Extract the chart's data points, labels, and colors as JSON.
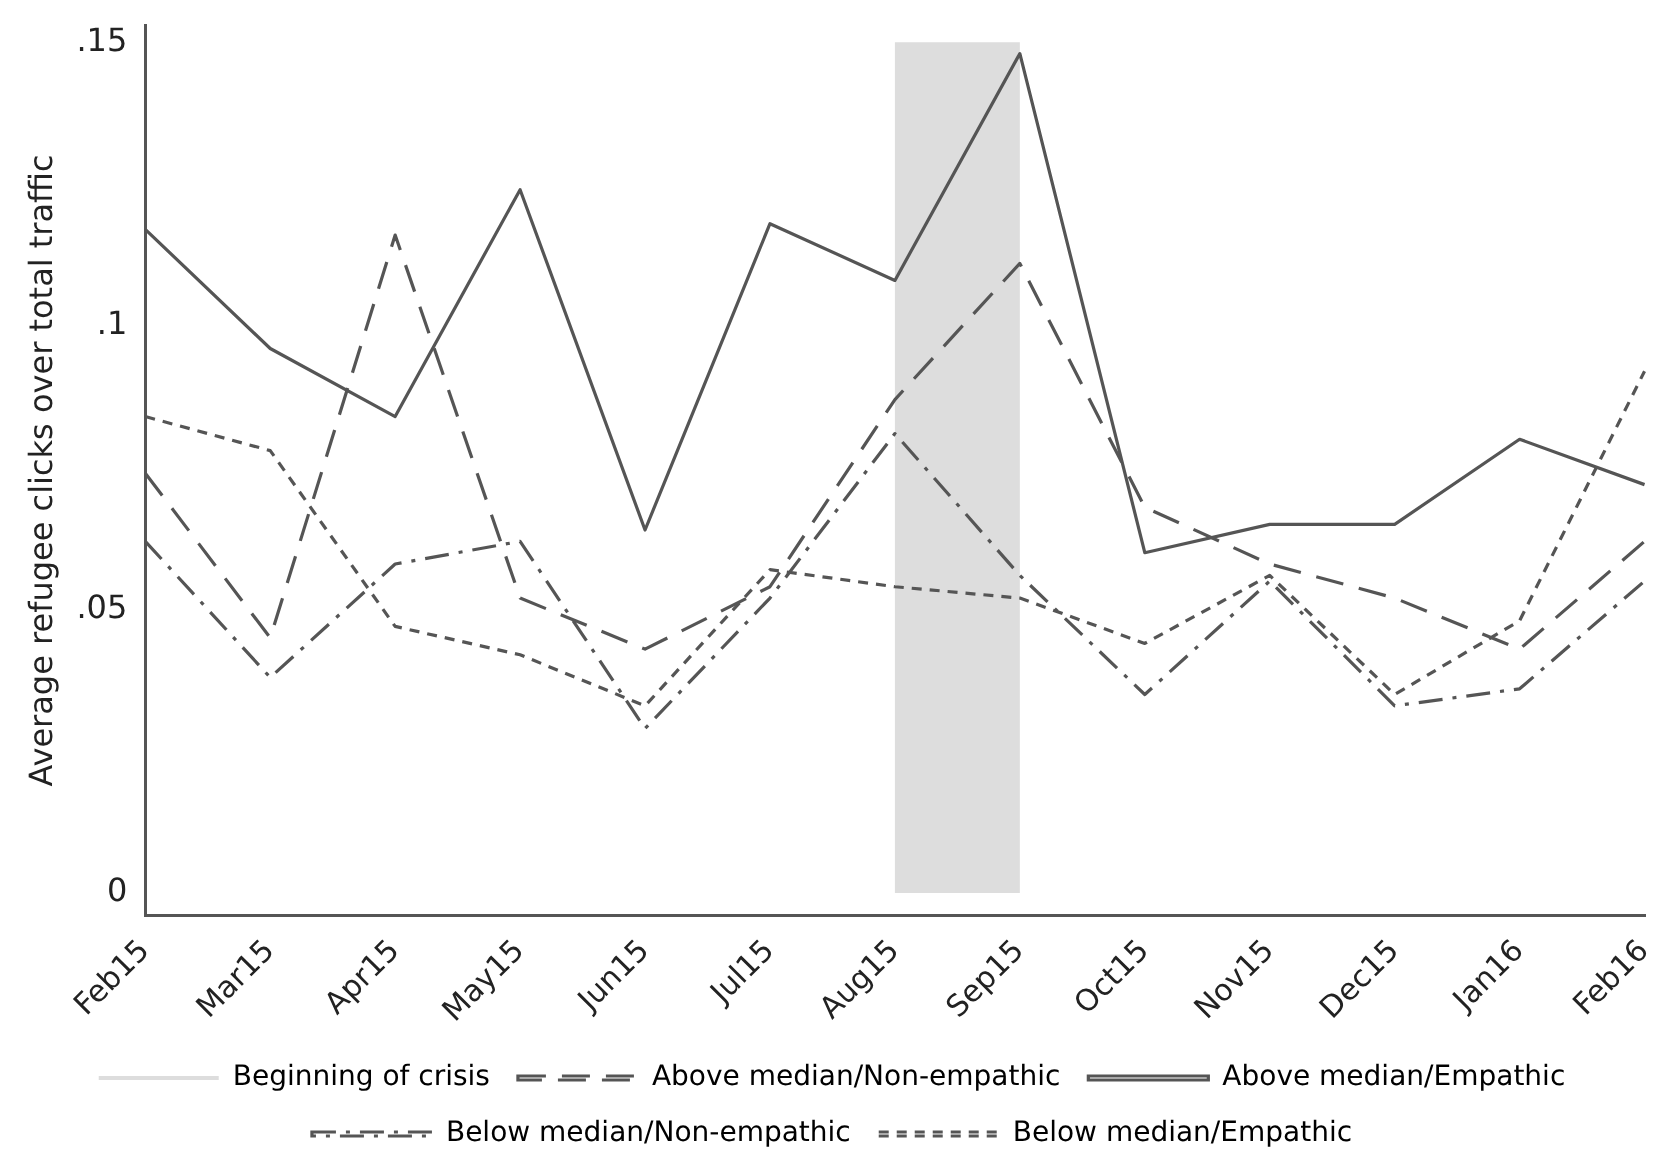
{
  "chart_data": {
    "type": "line",
    "ylabel": "Average refugee clicks over total traffic",
    "categories": [
      "Feb15",
      "Mar15",
      "Apr15",
      "May15",
      "Jun15",
      "Jul15",
      "Aug15",
      "Sep15",
      "Oct15",
      "Nov15",
      "Dec15",
      "Jan16",
      "Feb16"
    ],
    "series": [
      {
        "name": "Above median/Non-empathic",
        "color": "#555555",
        "line_style": "dashed",
        "values": [
          0.074,
          0.045,
          0.116,
          0.052,
          0.043,
          0.054,
          0.087,
          0.111,
          0.068,
          0.058,
          0.052,
          0.043,
          0.062
        ]
      },
      {
        "name": "Above median/Empathic",
        "color": "#555555",
        "line_style": "solid",
        "values": [
          0.117,
          0.096,
          0.084,
          0.124,
          0.064,
          0.118,
          0.108,
          0.148,
          0.06,
          0.065,
          0.065,
          0.08,
          0.072
        ]
      },
      {
        "name": "Below median/Non-empathic",
        "color": "#555555",
        "line_style": "dashdot",
        "values": [
          0.062,
          0.038,
          0.058,
          0.062,
          0.029,
          0.052,
          0.081,
          0.056,
          0.035,
          0.055,
          0.033,
          0.036,
          0.055
        ]
      },
      {
        "name": "Below median/Empathic",
        "color": "#555555",
        "line_style": "dotted",
        "values": [
          0.084,
          0.078,
          0.047,
          0.042,
          0.033,
          0.057,
          0.054,
          0.052,
          0.044,
          0.056,
          0.035,
          0.048,
          0.092
        ]
      }
    ],
    "bands": [
      {
        "axis": "x",
        "from": "Aug15",
        "to": "Sep15",
        "label": "Beginning of crisis",
        "color": "#dddddd"
      }
    ],
    "ylim": [
      -0.004,
      0.153
    ],
    "yticks": [
      0,
      {
        "value": 0.05,
        "label": ".05"
      },
      {
        "value": 0.1,
        "label": ".1"
      },
      {
        "value": 0.15,
        "label": ".15"
      }
    ],
    "grid": false,
    "legend": "bottom",
    "marker": "none"
  }
}
